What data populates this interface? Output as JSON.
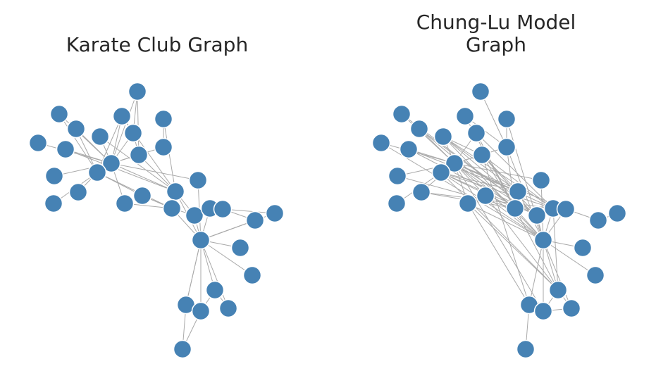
{
  "colors": {
    "node_fill": "#4682b4",
    "node_stroke": "#ffffff",
    "edge": "#a9a9a9",
    "title_text": "#262626"
  },
  "panels": [
    {
      "id": "karate",
      "title_line1": "Karate Club Graph",
      "title_line2": ""
    },
    {
      "id": "chunglu",
      "title_line1": "Chung-Lu Model",
      "title_line2": "Graph"
    }
  ]
}
